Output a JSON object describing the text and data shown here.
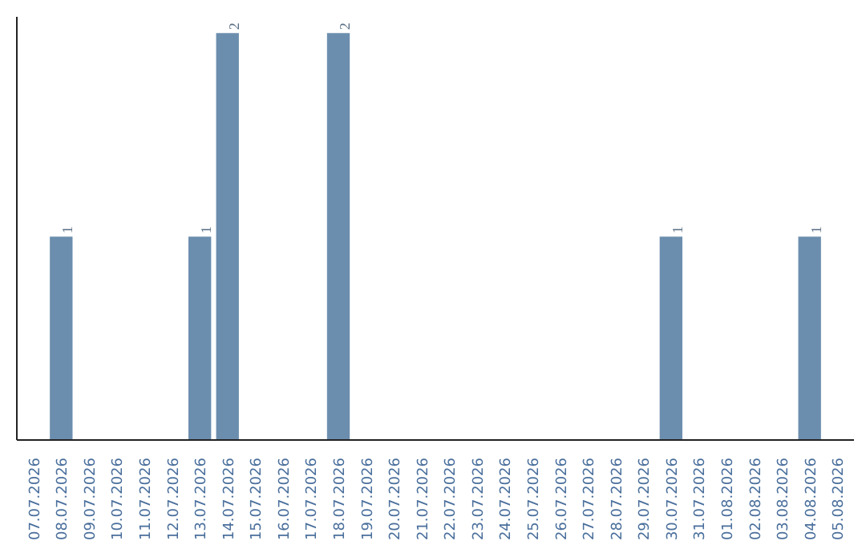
{
  "chart_data": {
    "type": "bar",
    "categories": [
      "07.07.2026",
      "08.07.2026",
      "09.07.2026",
      "10.07.2026",
      "11.07.2026",
      "12.07.2026",
      "13.07.2026",
      "14.07.2026",
      "15.07.2026",
      "16.07.2026",
      "17.07.2026",
      "18.07.2026",
      "19.07.2026",
      "20.07.2026",
      "21.07.2026",
      "22.07.2026",
      "23.07.2026",
      "24.07.2026",
      "25.07.2026",
      "26.07.2026",
      "27.07.2026",
      "28.07.2026",
      "29.07.2026",
      "30.07.2026",
      "31.07.2026",
      "01.08.2026",
      "02.08.2026",
      "03.08.2026",
      "04.08.2026",
      "05.08.2026"
    ],
    "values": [
      0,
      1,
      0,
      0,
      0,
      0,
      1,
      2,
      0,
      0,
      0,
      2,
      0,
      0,
      0,
      0,
      0,
      0,
      0,
      0,
      0,
      0,
      0,
      1,
      0,
      0,
      0,
      0,
      1,
      0
    ],
    "value_labels": [
      null,
      "1",
      null,
      null,
      null,
      null,
      "1",
      "2",
      null,
      null,
      null,
      "2",
      null,
      null,
      null,
      null,
      null,
      null,
      null,
      null,
      null,
      null,
      null,
      "1",
      null,
      null,
      null,
      null,
      "1",
      null
    ],
    "color": "#6c8eae",
    "grid": false,
    "tick_labels": "x"
  }
}
